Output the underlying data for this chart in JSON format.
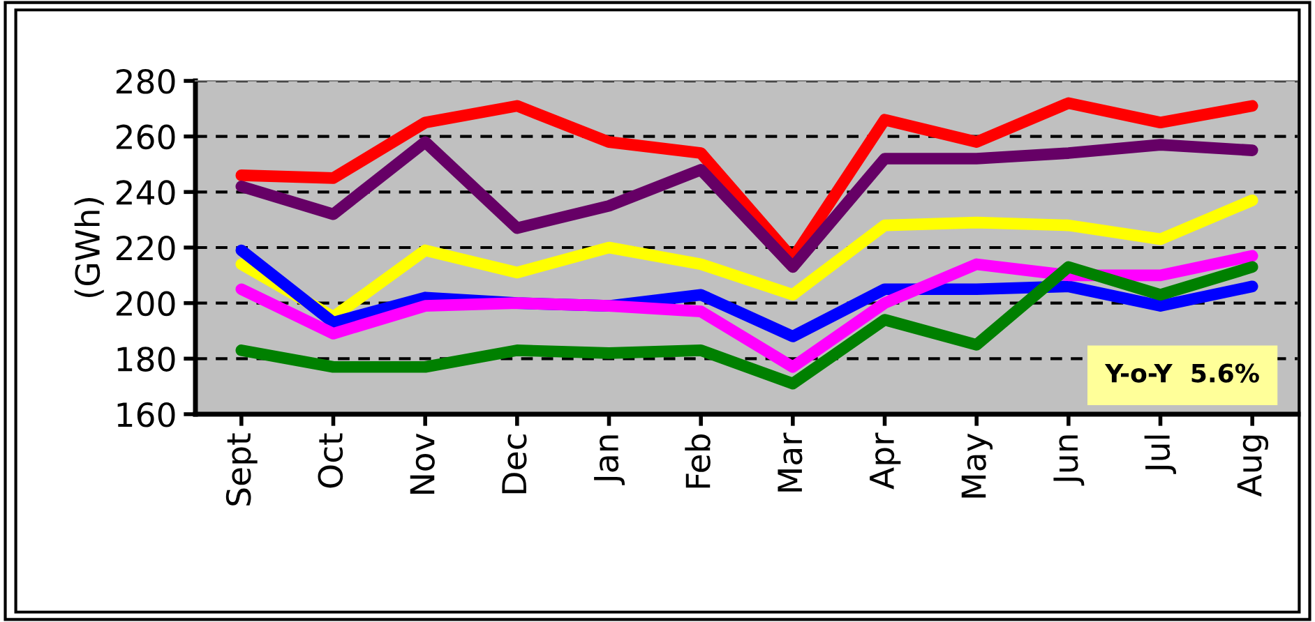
{
  "chart_data": {
    "type": "line",
    "ylabel": "(GWh)",
    "categories": [
      "Sept",
      "Oct",
      "Nov",
      "Dec",
      "Jan",
      "Feb",
      "Mar",
      "Apr",
      "May",
      "Jun",
      "Jul",
      "Aug"
    ],
    "series": [
      {
        "color": "#ff0000",
        "values": [
          246,
          245,
          265,
          271,
          258,
          254,
          216,
          266,
          258,
          272,
          265,
          271
        ]
      },
      {
        "color": "#660066",
        "values": [
          242,
          232,
          258,
          227,
          235,
          248,
          213,
          252,
          252,
          254,
          257,
          255
        ]
      },
      {
        "color": "#ffff00",
        "values": [
          214,
          195,
          219,
          211,
          220,
          214,
          203,
          228,
          229,
          228,
          223,
          237
        ]
      },
      {
        "color": "#0000ff",
        "values": [
          219,
          193,
          202,
          200,
          199,
          203,
          188,
          205,
          205,
          206,
          199,
          206
        ]
      },
      {
        "color": "#ff00ff",
        "values": [
          205,
          189,
          199,
          200,
          199,
          197,
          177,
          200,
          214,
          210,
          210,
          217
        ]
      },
      {
        "color": "#008000",
        "values": [
          183,
          177,
          177,
          183,
          182,
          183,
          171,
          194,
          185,
          213,
          203,
          213
        ]
      }
    ],
    "ylim": [
      160,
      280
    ],
    "yticks": [
      160,
      180,
      200,
      220,
      240,
      260,
      280
    ],
    "grid": "y",
    "legend": false,
    "marker": "none",
    "line_style": "solid",
    "annotations": [
      "Y-o-Y  5.6%"
    ]
  }
}
